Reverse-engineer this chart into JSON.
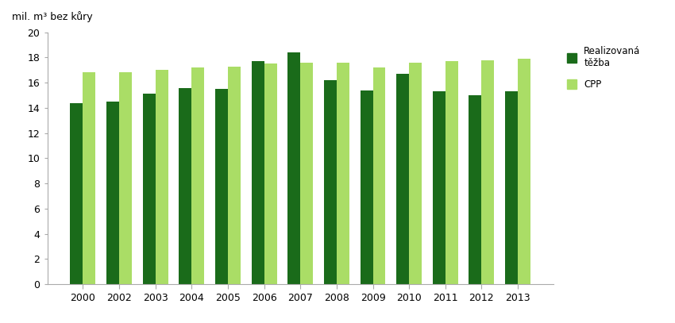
{
  "years": [
    "2000",
    "2002",
    "2003",
    "2004",
    "2005",
    "2006",
    "2007",
    "2008",
    "2009",
    "2010",
    "2011",
    "2012",
    "2013"
  ],
  "realizovana_tezba": [
    14.4,
    14.5,
    15.1,
    15.6,
    15.5,
    17.7,
    18.4,
    16.2,
    15.4,
    16.7,
    15.3,
    15.0,
    15.3
  ],
  "cpp": [
    16.8,
    16.8,
    17.0,
    17.2,
    17.3,
    17.5,
    17.6,
    17.6,
    17.2,
    17.6,
    17.7,
    17.8,
    17.9
  ],
  "color_realizovana": "#1a6b1a",
  "color_cpp": "#aadd66",
  "ylabel": "mil. m³ bez kůry",
  "ylim": [
    0,
    20
  ],
  "yticks": [
    0,
    2,
    4,
    6,
    8,
    10,
    12,
    14,
    16,
    18,
    20
  ],
  "legend_realizovana": "Realizovaná\ntěžba",
  "legend_cpp": "CPP",
  "bar_width": 0.35,
  "figsize": [
    8.5,
    4.07
  ],
  "dpi": 100
}
